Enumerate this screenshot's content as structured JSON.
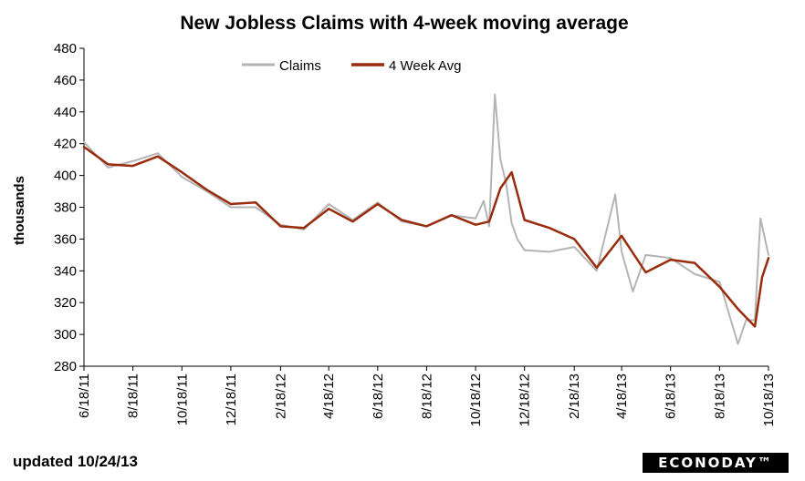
{
  "chart_data": {
    "type": "line",
    "title": "New Jobless Claims with 4-week moving average",
    "ylabel": "thousands",
    "xlabel": "",
    "ylim": [
      280,
      480
    ],
    "yticks": [
      280,
      300,
      320,
      340,
      360,
      380,
      400,
      420,
      440,
      460,
      480
    ],
    "xlim": [
      "6/18/11",
      "10/18/13"
    ],
    "xticks": [
      "6/18/11",
      "8/18/11",
      "10/18/11",
      "12/18/11",
      "2/18/12",
      "4/18/12",
      "6/18/12",
      "8/18/12",
      "10/18/12",
      "12/18/12",
      "2/18/13",
      "4/18/13",
      "6/18/13",
      "8/18/13",
      "10/18/13"
    ],
    "grid": false,
    "legend": "top-center",
    "colors": {
      "claims": "#b4b4b4",
      "avg": "#9a2c0e"
    },
    "series": [
      {
        "name": "Claims",
        "points": [
          [
            "6/18/11",
            421
          ],
          [
            "7/18/11",
            405
          ],
          [
            "8/18/11",
            409
          ],
          [
            "9/18/11",
            414
          ],
          [
            "10/18/11",
            399
          ],
          [
            "11/18/11",
            390
          ],
          [
            "12/18/11",
            380
          ],
          [
            "1/18/12",
            380
          ],
          [
            "2/18/12",
            369
          ],
          [
            "3/18/12",
            366
          ],
          [
            "4/18/12",
            382
          ],
          [
            "5/18/12",
            372
          ],
          [
            "6/18/12",
            383
          ],
          [
            "7/18/12",
            371
          ],
          [
            "8/18/12",
            368
          ],
          [
            "9/18/12",
            375
          ],
          [
            "10/18/12",
            373
          ],
          [
            "10/28/12",
            384
          ],
          [
            "11/4/12",
            368
          ],
          [
            "11/11/12",
            451
          ],
          [
            "11/18/12",
            410
          ],
          [
            "11/25/12",
            395
          ],
          [
            "12/2/12",
            370
          ],
          [
            "12/9/12",
            360
          ],
          [
            "12/18/12",
            353
          ],
          [
            "1/18/13",
            352
          ],
          [
            "2/18/13",
            355
          ],
          [
            "3/18/13",
            340
          ],
          [
            "4/10/13",
            388
          ],
          [
            "4/18/13",
            352
          ],
          [
            "5/2/13",
            327
          ],
          [
            "5/18/13",
            350
          ],
          [
            "6/18/13",
            348
          ],
          [
            "7/18/13",
            338
          ],
          [
            "8/18/13",
            333
          ],
          [
            "9/10/13",
            294
          ],
          [
            "9/20/13",
            309
          ],
          [
            "10/1/13",
            309
          ],
          [
            "10/8/13",
            373
          ],
          [
            "10/18/13",
            350
          ]
        ]
      },
      {
        "name": "4 Week Avg",
        "points": [
          [
            "6/18/11",
            418
          ],
          [
            "7/18/11",
            407
          ],
          [
            "8/18/11",
            406
          ],
          [
            "9/18/11",
            412
          ],
          [
            "10/18/11",
            402
          ],
          [
            "11/18/11",
            391
          ],
          [
            "12/18/11",
            382
          ],
          [
            "1/18/12",
            383
          ],
          [
            "2/18/12",
            368
          ],
          [
            "3/18/12",
            367
          ],
          [
            "4/18/12",
            379
          ],
          [
            "5/18/12",
            371
          ],
          [
            "6/18/12",
            382
          ],
          [
            "7/18/12",
            372
          ],
          [
            "8/18/12",
            368
          ],
          [
            "9/18/12",
            375
          ],
          [
            "10/18/12",
            369
          ],
          [
            "11/4/12",
            371
          ],
          [
            "11/18/12",
            392
          ],
          [
            "12/2/12",
            402
          ],
          [
            "12/18/12",
            372
          ],
          [
            "1/18/13",
            367
          ],
          [
            "2/18/13",
            360
          ],
          [
            "3/18/13",
            342
          ],
          [
            "4/18/13",
            362
          ],
          [
            "5/18/13",
            339
          ],
          [
            "6/18/13",
            347
          ],
          [
            "7/18/13",
            345
          ],
          [
            "8/18/13",
            330
          ],
          [
            "9/10/13",
            316
          ],
          [
            "10/1/13",
            305
          ],
          [
            "10/10/13",
            336
          ],
          [
            "10/18/13",
            348
          ]
        ]
      }
    ]
  },
  "footer": {
    "updated": "updated 10/24/13",
    "logo": "ECONODAY™"
  }
}
